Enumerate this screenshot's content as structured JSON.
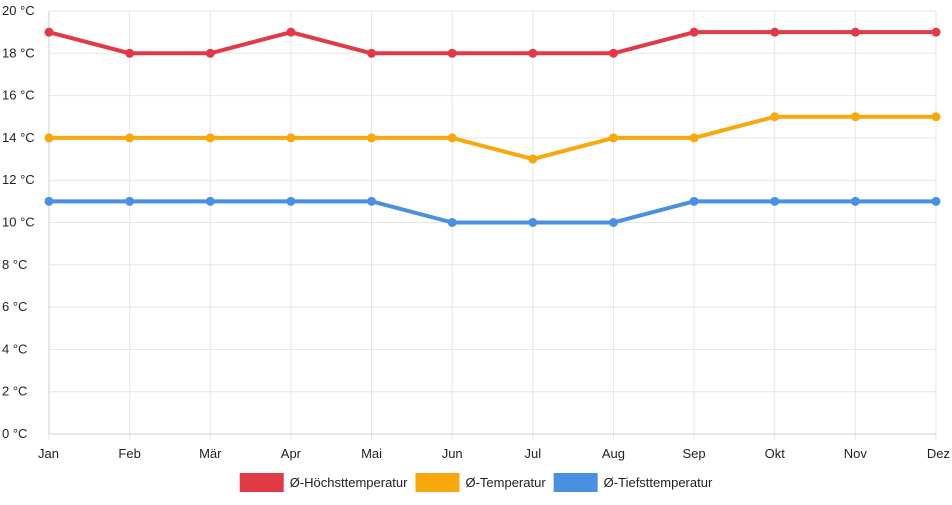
{
  "chart_data": {
    "type": "line",
    "categories": [
      "Jan",
      "Feb",
      "Mär",
      "Apr",
      "Mai",
      "Jun",
      "Jul",
      "Aug",
      "Sep",
      "Okt",
      "Nov",
      "Dez"
    ],
    "y_ticks": [
      "0 °C",
      "2 °C",
      "4 °C",
      "6 °C",
      "8 °C",
      "10 °C",
      "12 °C",
      "14 °C",
      "16 °C",
      "18 °C",
      "20 °C"
    ],
    "ylim": [
      0,
      20
    ],
    "y_step": 2,
    "grid": true,
    "legend_position": "bottom",
    "series": [
      {
        "name": "Ø-Höchsttemperatur",
        "color": "#e03a47",
        "values": [
          19,
          18,
          18,
          19,
          18,
          18,
          18,
          18,
          19,
          19,
          19,
          19
        ]
      },
      {
        "name": "Ø-Temperatur",
        "color": "#f8a70d",
        "values": [
          14,
          14,
          14,
          14,
          14,
          14,
          13,
          14,
          14,
          15,
          15,
          15
        ]
      },
      {
        "name": "Ø-Tiefsttemperatur",
        "color": "#4a90e2",
        "values": [
          11,
          11,
          11,
          11,
          11,
          10,
          10,
          10,
          11,
          11,
          11,
          11
        ]
      }
    ]
  }
}
